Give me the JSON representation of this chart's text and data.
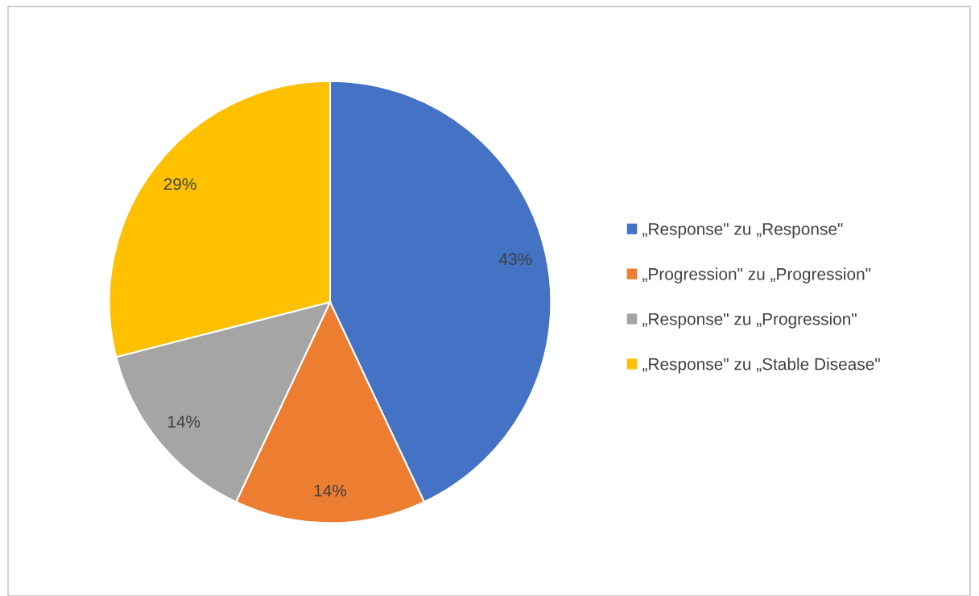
{
  "chart_data": {
    "type": "pie",
    "categories": [
      "„Response\" zu „Response\"",
      "„Progression\" zu „Progression\"",
      "„Response\" zu „Progression\"",
      "„Response\" zu „Stable Disease\""
    ],
    "values": [
      43,
      14,
      14,
      29
    ],
    "colors": [
      "#4472c4",
      "#ed7d31",
      "#a5a5a5",
      "#ffc000"
    ],
    "value_labels": [
      "43%",
      "14%",
      "14%",
      "29%"
    ],
    "legend": "right"
  }
}
